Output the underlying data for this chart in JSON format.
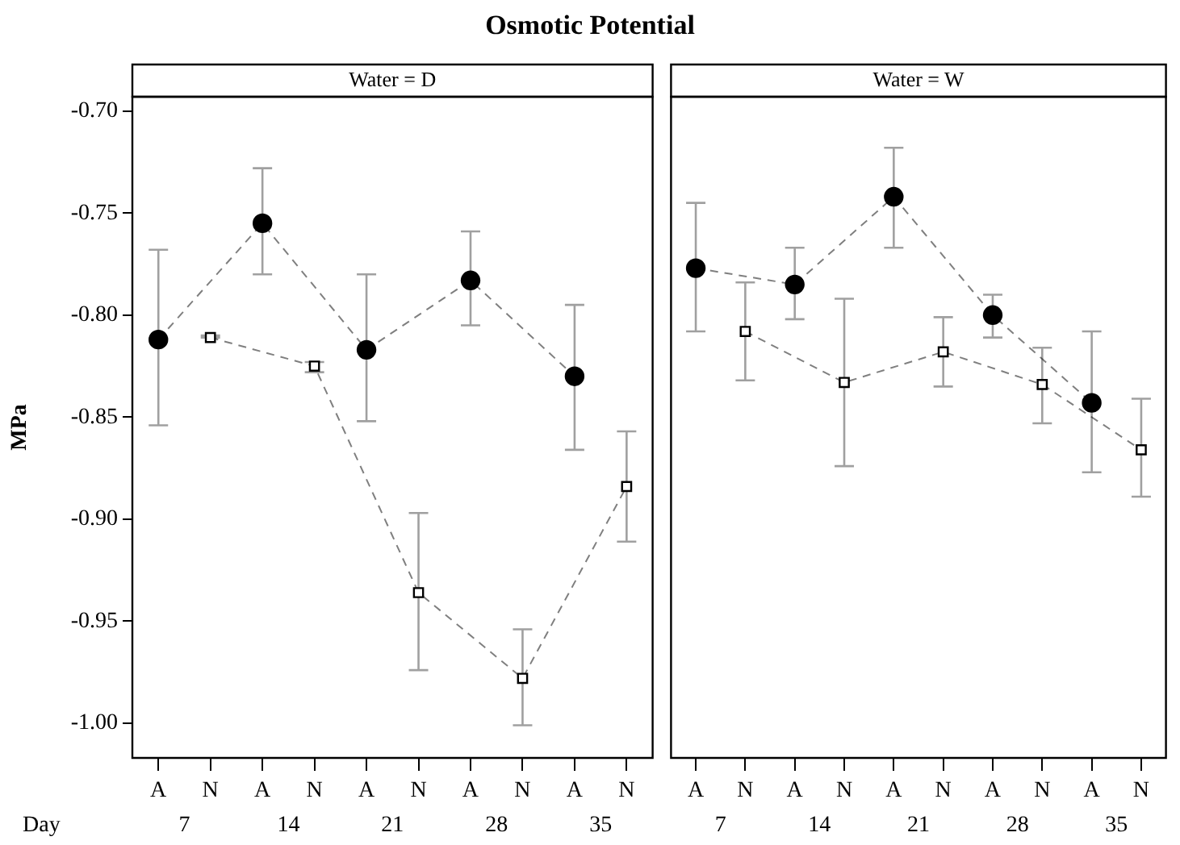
{
  "chart_data": [
    {
      "type": "line",
      "title": "Osmotic Potential",
      "subtitle": "Water = D",
      "ylabel": "MPa",
      "categories": [
        "A",
        "N",
        "A",
        "N",
        "A",
        "N",
        "A",
        "N",
        "A",
        "N"
      ],
      "annotations": [
        "Day",
        "7",
        "14",
        "21",
        "28",
        "35"
      ],
      "ylim": [
        -1.017,
        -0.693
      ],
      "yticks": [
        {
          "value": -1.0,
          "label": "-1.00"
        },
        {
          "value": -0.95,
          "label": "-0.95"
        },
        {
          "value": -0.9,
          "label": "-0.90"
        },
        {
          "value": -0.85,
          "label": "-0.85"
        },
        {
          "value": -0.8,
          "label": "-0.80"
        },
        {
          "value": -0.75,
          "label": "-0.75"
        },
        {
          "value": -0.7,
          "label": "-0.70"
        }
      ],
      "line_style": "dashed",
      "series": [
        {
          "color": "#000000",
          "marker": "circle",
          "values": [
            -0.812,
            null,
            -0.755,
            null,
            -0.817,
            null,
            -0.783,
            null,
            -0.83,
            null
          ],
          "errors": [
            [
              -0.854,
              -0.768
            ],
            null,
            [
              -0.78,
              -0.728
            ],
            null,
            [
              -0.852,
              -0.78
            ],
            null,
            [
              -0.805,
              -0.759
            ],
            null,
            [
              -0.866,
              -0.795
            ],
            null
          ]
        },
        {
          "color": "#000000",
          "marker": "square",
          "values": [
            null,
            -0.811,
            null,
            -0.825,
            null,
            -0.936,
            null,
            -0.978,
            null,
            -0.884
          ],
          "errors": [
            null,
            [
              -0.811,
              -0.81
            ],
            null,
            [
              -0.828,
              -0.823
            ],
            null,
            [
              -0.974,
              -0.897
            ],
            null,
            [
              -1.001,
              -0.954
            ],
            null,
            [
              -0.911,
              -0.857
            ]
          ]
        }
      ]
    },
    {
      "type": "line",
      "subtitle": "Water = W",
      "tick_labels": "x",
      "categories": [
        "A",
        "N",
        "A",
        "N",
        "A",
        "N",
        "A",
        "N",
        "A",
        "N"
      ],
      "annotations": [
        "7",
        "14",
        "21",
        "28",
        "35"
      ],
      "ylim": [
        -1.017,
        -0.693
      ],
      "line_style": "dashed",
      "series": [
        {
          "color": "#000000",
          "marker": "circle",
          "values": [
            -0.777,
            null,
            -0.785,
            null,
            -0.742,
            null,
            -0.8,
            null,
            -0.843,
            null
          ],
          "errors": [
            [
              -0.808,
              -0.745
            ],
            null,
            [
              -0.802,
              -0.767
            ],
            null,
            [
              -0.767,
              -0.718
            ],
            null,
            [
              -0.811,
              -0.79
            ],
            null,
            [
              -0.877,
              -0.808
            ],
            null
          ]
        },
        {
          "color": "#000000",
          "marker": "square",
          "values": [
            null,
            -0.808,
            null,
            -0.833,
            null,
            -0.818,
            null,
            -0.834,
            null,
            -0.866
          ],
          "errors": [
            null,
            [
              -0.832,
              -0.784
            ],
            null,
            [
              -0.874,
              -0.792
            ],
            null,
            [
              -0.835,
              -0.801
            ],
            null,
            [
              -0.853,
              -0.816
            ],
            null,
            [
              -0.889,
              -0.841
            ]
          ]
        }
      ]
    }
  ]
}
